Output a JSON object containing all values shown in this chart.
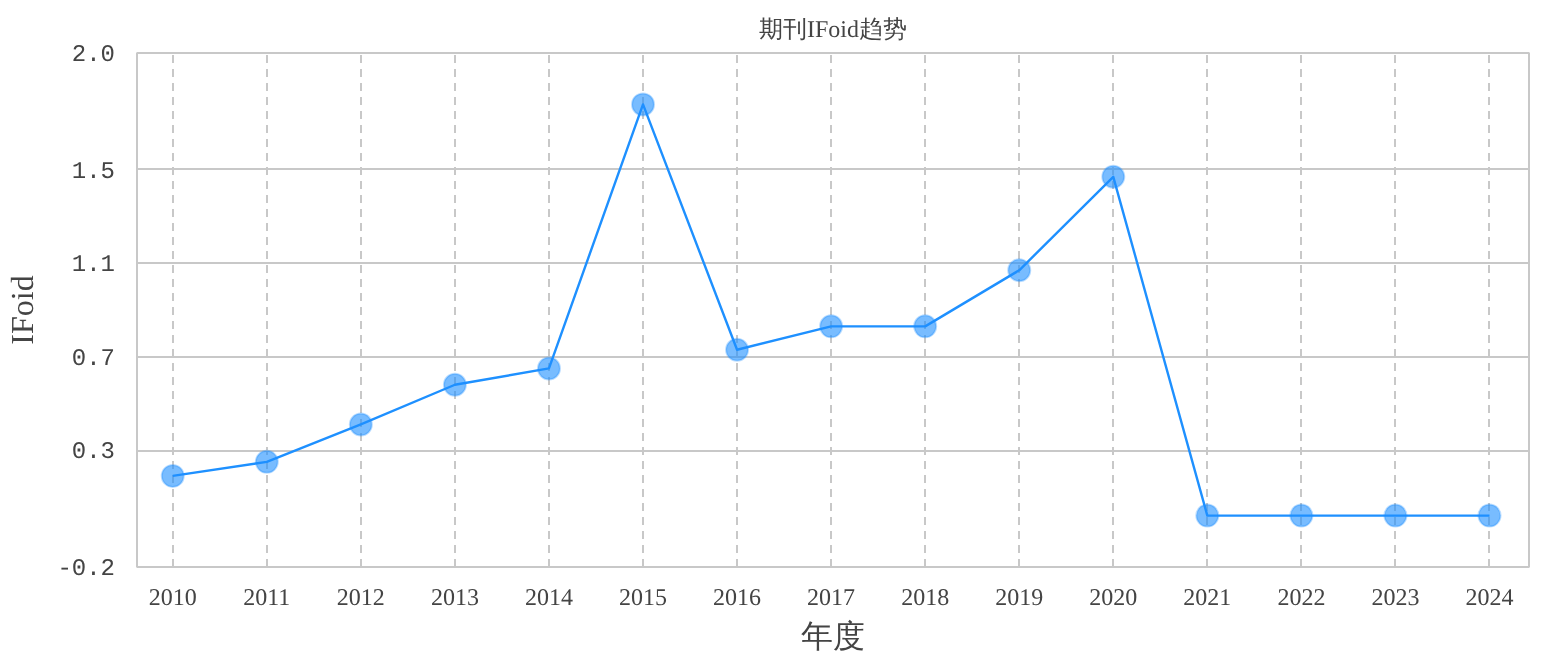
{
  "chart_data": {
    "type": "line",
    "title": "期刊IFoid趋势",
    "xlabel": "年度",
    "ylabel": "IFoid",
    "categories": [
      "2010",
      "2011",
      "2012",
      "2013",
      "2014",
      "2015",
      "2016",
      "2017",
      "2018",
      "2019",
      "2020",
      "2021",
      "2022",
      "2023",
      "2024"
    ],
    "series": [
      {
        "color": "#1e90ff",
        "values": [
          0.19,
          0.25,
          0.41,
          0.58,
          0.65,
          1.78,
          0.73,
          0.83,
          0.83,
          1.07,
          1.47,
          0.02,
          0.02,
          0.02,
          0.02
        ]
      }
    ],
    "ylim": [
      -0.2,
      2.0
    ],
    "yticks": [
      -0.2,
      0.3,
      0.7,
      1.1,
      1.5,
      {
        "value": 2.0,
        "label": "2.0"
      }
    ],
    "grid": true,
    "marker": "circle",
    "line_style": "solid"
  }
}
